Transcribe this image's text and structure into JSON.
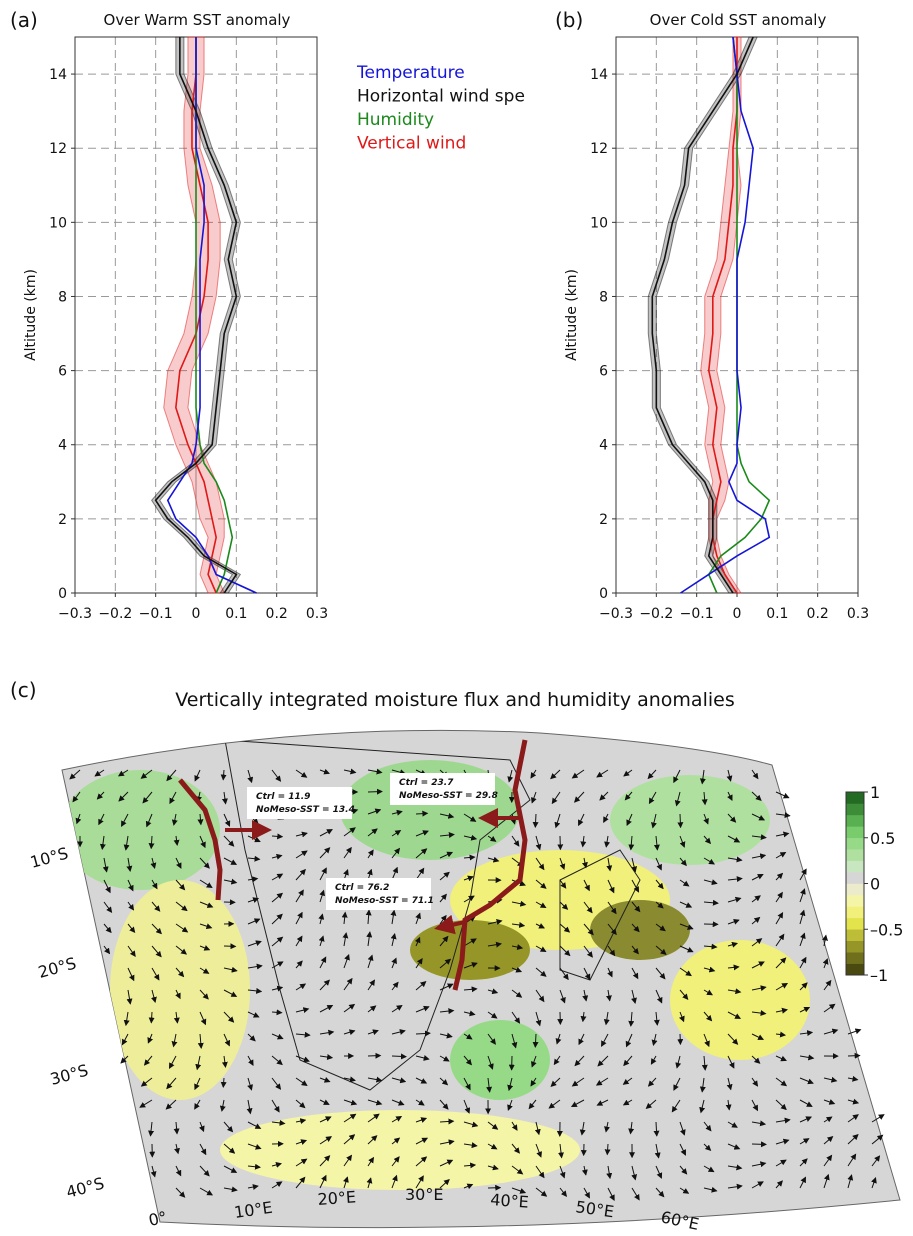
{
  "chart_data": [
    {
      "type": "line",
      "panel": "(a)",
      "title": "Over Warm SST anomaly",
      "y_label": "Altitude (km)",
      "xlim": [
        -0.3,
        0.3
      ],
      "ylim": [
        0,
        15
      ],
      "grid": true,
      "xticks": [
        {
          "value": -0.3,
          "label": "−0.3"
        },
        {
          "value": -0.2,
          "label": "−0.2"
        },
        {
          "value": -0.1,
          "label": "−0.1"
        },
        0,
        0.1,
        0.2,
        0.3
      ],
      "yticks": [
        0,
        2,
        4,
        6,
        8,
        10,
        12,
        14
      ],
      "y": [
        0,
        0.5,
        1,
        1.5,
        2,
        2.5,
        3,
        3.5,
        4,
        5,
        6,
        7,
        8,
        9,
        10,
        11,
        12,
        13,
        14,
        15
      ],
      "series": [
        {
          "name": "Temperature",
          "color": "#1515d8",
          "values": [
            0.15,
            0.05,
            0.03,
            0.0,
            -0.05,
            -0.07,
            -0.04,
            -0.01,
            0.0,
            0.01,
            0.01,
            0.01,
            0.01,
            0.01,
            0.02,
            0.02,
            0.0,
            0.0,
            0.0,
            0.0
          ]
        },
        {
          "name": "Horizontal wind spe",
          "color": "#111111",
          "values": [
            0.07,
            0.1,
            0.02,
            -0.02,
            -0.07,
            -0.1,
            -0.06,
            0.0,
            0.04,
            0.05,
            0.06,
            0.07,
            0.1,
            0.08,
            0.1,
            0.07,
            0.03,
            0.0,
            -0.04,
            -0.04
          ],
          "spread": [
            0.01,
            0.01,
            0.01,
            0.01,
            0.01,
            0.01,
            0.01,
            0.01,
            0.01,
            0.01,
            0.01,
            0.01,
            0.01,
            0.01,
            0.01,
            0.01,
            0.01,
            0.01,
            0.01,
            0.01
          ]
        },
        {
          "name": "Humidity",
          "color": "#1a8a1a",
          "values": [
            0.05,
            0.07,
            0.08,
            0.09,
            0.08,
            0.07,
            0.05,
            0.02,
            0.01,
            0.0,
            0.0,
            0.0,
            0.0,
            0.0,
            0.0,
            0.0,
            0.0,
            0.0,
            0.0,
            0.0
          ]
        },
        {
          "name": "Vertical wind",
          "color": "#e01818",
          "values": [
            0.05,
            0.03,
            0.04,
            0.05,
            0.04,
            0.03,
            0.02,
            0.0,
            -0.02,
            -0.05,
            -0.04,
            0.0,
            0.02,
            0.03,
            0.03,
            0.01,
            -0.01,
            -0.01,
            0.0,
            0.0
          ],
          "spread": [
            0.02,
            0.02,
            0.02,
            0.02,
            0.03,
            0.03,
            0.03,
            0.03,
            0.03,
            0.03,
            0.03,
            0.03,
            0.03,
            0.03,
            0.03,
            0.03,
            0.02,
            0.02,
            0.02,
            0.02
          ]
        }
      ]
    },
    {
      "type": "line",
      "panel": "(b)",
      "title": "Over Cold SST anomaly",
      "y_label": "Altitude (km)",
      "xlim": [
        -0.3,
        0.3
      ],
      "ylim": [
        0,
        15
      ],
      "grid": true,
      "xticks": [
        {
          "value": -0.3,
          "label": "−0.3"
        },
        {
          "value": -0.2,
          "label": "−0.2"
        },
        {
          "value": -0.1,
          "label": "−0.1"
        },
        0,
        0.1,
        0.2,
        0.3
      ],
      "yticks": [
        0,
        2,
        4,
        6,
        8,
        10,
        12,
        14
      ],
      "y": [
        0,
        0.5,
        1,
        1.5,
        2,
        2.5,
        3,
        3.5,
        4,
        5,
        6,
        7,
        8,
        9,
        10,
        11,
        12,
        13,
        14,
        15
      ],
      "series": [
        {
          "color": "#1515d8",
          "values": [
            -0.14,
            -0.07,
            0.0,
            0.08,
            0.07,
            0.0,
            -0.02,
            0.0,
            0.0,
            0.01,
            0.0,
            0.0,
            0.0,
            0.0,
            0.02,
            0.03,
            0.04,
            0.01,
            0.0,
            -0.01
          ]
        },
        {
          "color": "#111111",
          "values": [
            -0.01,
            -0.04,
            -0.07,
            -0.06,
            -0.06,
            -0.06,
            -0.08,
            -0.12,
            -0.16,
            -0.2,
            -0.2,
            -0.21,
            -0.21,
            -0.18,
            -0.16,
            -0.13,
            -0.12,
            -0.06,
            0.0,
            0.04
          ],
          "spread": [
            0.01,
            0.01,
            0.01,
            0.01,
            0.01,
            0.01,
            0.01,
            0.01,
            0.01,
            0.01,
            0.01,
            0.01,
            0.01,
            0.01,
            0.01,
            0.01,
            0.01,
            0.01,
            0.01,
            0.01
          ]
        },
        {
          "color": "#1a8a1a",
          "values": [
            -0.05,
            -0.07,
            -0.04,
            0.02,
            0.06,
            0.08,
            0.03,
            0.01,
            0.0,
            0.0,
            0.0,
            0.0,
            0.0,
            0.0,
            0.0,
            0.0,
            0.0,
            0.0,
            0.0,
            -0.01
          ]
        },
        {
          "color": "#e01818",
          "values": [
            0.0,
            -0.03,
            -0.05,
            -0.06,
            -0.06,
            -0.05,
            -0.04,
            -0.05,
            -0.06,
            -0.05,
            -0.07,
            -0.06,
            -0.06,
            -0.03,
            -0.02,
            -0.01,
            -0.01,
            0.0,
            0.0,
            0.0
          ],
          "spread": [
            0.01,
            0.01,
            0.01,
            0.01,
            0.01,
            0.02,
            0.02,
            0.02,
            0.02,
            0.02,
            0.02,
            0.02,
            0.02,
            0.02,
            0.02,
            0.02,
            0.01,
            0.01,
            0.01,
            0.01
          ]
        }
      ]
    }
  ],
  "map": {
    "panel": "(c)",
    "title": "Vertically integrated moisture flux and humidity anomalies",
    "lat_labels": [
      "10°S",
      "20°S",
      "30°S",
      "40°S"
    ],
    "lon_labels": [
      "0°",
      "10°E",
      "20°E",
      "30°E",
      "40°E",
      "50°E",
      "60°E"
    ],
    "annotations": [
      [
        "Ctrl = 11.9",
        "NoMeso-SST = 13.4"
      ],
      [
        "Ctrl = 23.7",
        "NoMeso-SST = 29.8"
      ],
      [
        "Ctrl = 76.2",
        "NoMeso-SST = 71.1"
      ]
    ],
    "colorbar": {
      "ylim": [
        -1,
        1
      ],
      "ticks": [
        1,
        0.5,
        0,
        {
          "value": -0.5,
          "label": "–0.5"
        },
        {
          "value": -1,
          "label": "–1"
        }
      ],
      "colors": [
        "#4a4a10",
        "#6f6f1c",
        "#969628",
        "#bdbd38",
        "#e3e34c",
        "#f0f07a",
        "#f5f5a8",
        "#ececcc",
        "#d6d6d6",
        "#c8e6c0",
        "#b0e0a0",
        "#96da88",
        "#78cc6c",
        "#58b050",
        "#3c8c38",
        "#236a22"
      ]
    }
  }
}
